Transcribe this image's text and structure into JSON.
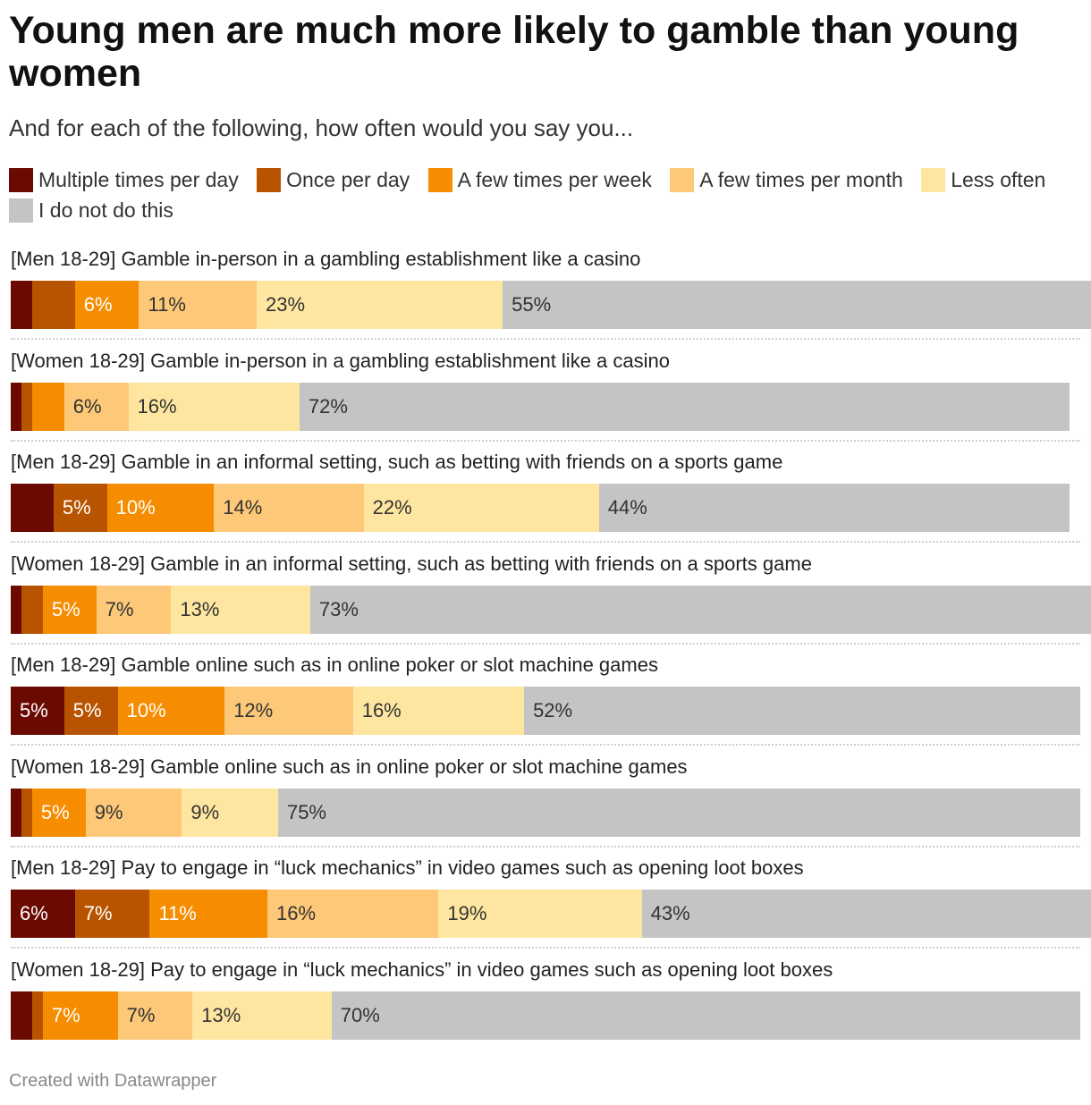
{
  "title": "Young men are much more likely to gamble than young women",
  "subtitle": "And for each of the following, how often would you say you...",
  "footer": "Created with Datawrapper",
  "chart_data": {
    "type": "bar",
    "stacked": true,
    "orientation": "horizontal",
    "legend_position": "top",
    "series": [
      {
        "name": "Multiple times per day",
        "color": "#6b0a00",
        "label_color": "#ffffff"
      },
      {
        "name": "Once per day",
        "color": "#b85400",
        "label_color": "#ffffff"
      },
      {
        "name": "A few times per week",
        "color": "#f68c00",
        "label_color": "#ffffff"
      },
      {
        "name": "A few times per month",
        "color": "#fdc877",
        "label_color": "#333333"
      },
      {
        "name": "Less often",
        "color": "#ffe6a0",
        "label_color": "#333333"
      },
      {
        "name": "I do not do this",
        "color": "#c4c4c4",
        "label_color": "#333333"
      }
    ],
    "rows": [
      {
        "label": "[Men 18-29] Gamble in-person in a gambling establishment like a casino",
        "values": [
          2,
          4,
          6,
          11,
          23,
          55
        ],
        "shown": [
          "",
          "",
          "6%",
          "11%",
          "23%",
          "55%"
        ]
      },
      {
        "label": "[Women 18-29] Gamble in-person in a gambling establishment like a casino",
        "values": [
          1,
          1,
          3,
          6,
          16,
          72
        ],
        "shown": [
          "",
          "",
          "",
          "6%",
          "16%",
          "72%"
        ]
      },
      {
        "label": "[Men 18-29] Gamble in an informal setting, such as betting with friends on a sports game",
        "values": [
          4,
          5,
          10,
          14,
          22,
          44
        ],
        "shown": [
          "",
          "5%",
          "10%",
          "14%",
          "22%",
          "44%"
        ]
      },
      {
        "label": "[Women 18-29] Gamble in an informal setting, such as betting with friends on a sports game",
        "values": [
          1,
          2,
          5,
          7,
          13,
          73
        ],
        "shown": [
          "",
          "",
          "5%",
          "7%",
          "13%",
          "73%"
        ]
      },
      {
        "label": "[Men 18-29] Gamble online such as in online poker or slot machine games",
        "values": [
          5,
          5,
          10,
          12,
          16,
          52
        ],
        "shown": [
          "5%",
          "5%",
          "10%",
          "12%",
          "16%",
          "52%"
        ]
      },
      {
        "label": "[Women 18-29] Gamble online such as in online poker or slot machine games",
        "values": [
          1,
          1,
          5,
          9,
          9,
          75
        ],
        "shown": [
          "",
          "",
          "5%",
          "9%",
          "9%",
          "75%"
        ]
      },
      {
        "label": "[Men 18-29] Pay to engage in “luck mechanics” in video games such as opening loot boxes",
        "values": [
          6,
          7,
          11,
          16,
          19,
          43
        ],
        "shown": [
          "6%",
          "7%",
          "11%",
          "16%",
          "19%",
          "43%"
        ]
      },
      {
        "label": "[Women 18-29] Pay to engage in “luck mechanics” in video games such as opening loot boxes",
        "values": [
          2,
          1,
          7,
          7,
          13,
          70
        ],
        "shown": [
          "",
          "",
          "7%",
          "7%",
          "13%",
          "70%"
        ]
      }
    ]
  }
}
